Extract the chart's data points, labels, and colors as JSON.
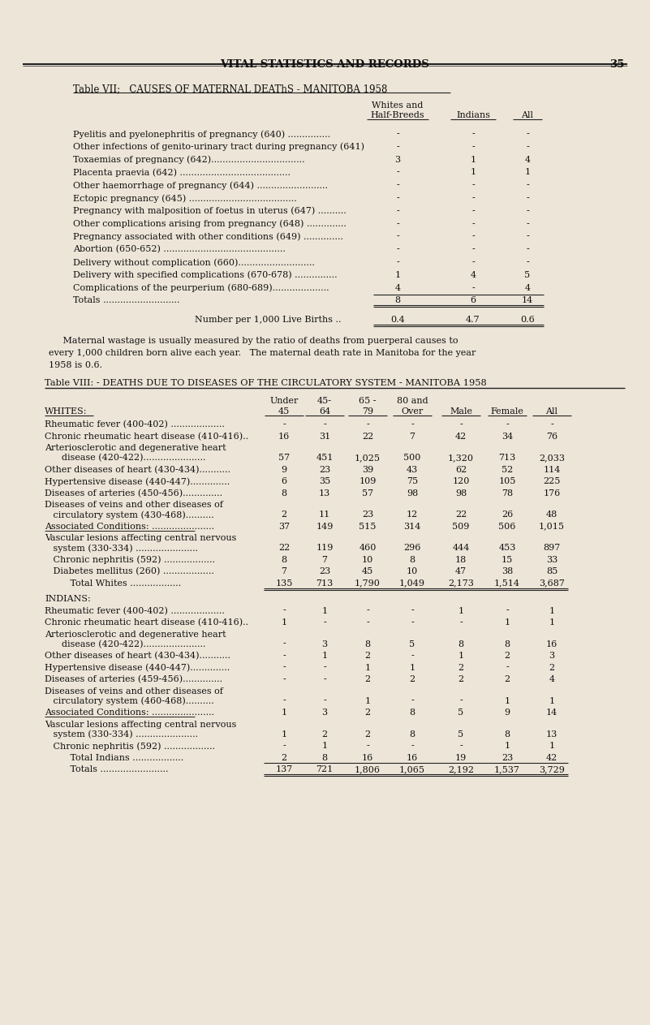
{
  "bg_color": "#ede5d8",
  "text_color": "#1a1a1a",
  "page_header": "VITAL STATISTICS AND RECORDS",
  "page_number": "35",
  "table7_title": "Table VII;   CAUSES OF MATERNAL DEAThS - MANITOBA 1958",
  "table7_col_header1": "Whites and",
  "table7_col_header2": "Half-Breeds",
  "table7_col_header3": "Indians",
  "table7_col_header4": "All",
  "table7_rows": [
    [
      "Pyelitis and pyelonephritis of pregnancy (640) ...............",
      "-",
      "-",
      "-"
    ],
    [
      "Other infections of genito-urinary tract during pregnancy (641)",
      "-",
      "-",
      "-"
    ],
    [
      "Toxaemias of pregnancy (642).................................",
      "3",
      "1",
      "4"
    ],
    [
      "Placenta praevia (642) .......................................",
      "-",
      "1",
      "1"
    ],
    [
      "Other haemorrhage of pregnancy (644) .........................",
      "-",
      "-",
      "-"
    ],
    [
      "Ectopic pregnancy (645) ......................................",
      "-",
      "-",
      "-"
    ],
    [
      "Pregnancy with malposition of foetus in uterus (647) ..........",
      "-",
      "-",
      "-"
    ],
    [
      "Other complications arising from pregnancy (648) ..............",
      "-",
      "-",
      "-"
    ],
    [
      "Pregnancy associated with other conditions (649) ..............",
      "-",
      "-",
      "-"
    ],
    [
      "Abortion (650-652) ...........................................",
      "-",
      "-",
      "-"
    ],
    [
      "Delivery without complication (660)...........................",
      "-",
      "-",
      "-"
    ],
    [
      "Delivery with specified complications (670-678) ...............",
      "1",
      "4",
      "5"
    ],
    [
      "Complications of the peurperium (680-689)....................",
      "4",
      "-",
      "4"
    ]
  ],
  "table7_totals_label": "Totals ...........................",
  "table7_totals": [
    "8",
    "6",
    "14"
  ],
  "table7_livebirth_label": "Number per 1,000 Live Births ..",
  "table7_livebirth": [
    "0.4",
    "4.7",
    "0.6"
  ],
  "para_line1": "     Maternal wastage is usually measured by the ratio of deaths from puerperal causes to",
  "para_line2": "every 1,000 children born alive each year.   The maternal death rate in Manitoba for the year",
  "para_line3": "1958 is 0.6.",
  "table8_title": "Table VIII: - DEATHS DUE TO DISEASES OF THE CIRCULATORY SYSTEM - MANITOBA 1958",
  "table8_whites_label": "WHITES:",
  "table8_whites_rows": [
    [
      "Rheumatic fever (400-402) ...................",
      "-",
      "-",
      "-",
      "-",
      "-",
      "-",
      "-"
    ],
    [
      "Chronic rheumatic heart disease (410-416)..",
      "16",
      "31",
      "22",
      "7",
      "42",
      "34",
      "76"
    ],
    [
      "Arteriosclerotic and degenerative heart",
      "",
      "",
      "",
      "",
      "",
      "",
      ""
    ],
    [
      "      disease (420-422)......................",
      "57",
      "451",
      "1,025",
      "500",
      "1,320",
      "713",
      "2,033"
    ],
    [
      "Other diseases of heart (430-434)...........",
      "9",
      "23",
      "39",
      "43",
      "62",
      "52",
      "114"
    ],
    [
      "Hypertensive disease (440-447)..............",
      "6",
      "35",
      "109",
      "75",
      "120",
      "105",
      "225"
    ],
    [
      "Diseases of arteries (450-456)..............",
      "8",
      "13",
      "57",
      "98",
      "98",
      "78",
      "176"
    ],
    [
      "Diseases of veins and other diseases of",
      "",
      "",
      "",
      "",
      "",
      "",
      ""
    ],
    [
      "   circulatory system (430-468)..........",
      "2",
      "11",
      "23",
      "12",
      "22",
      "26",
      "48"
    ],
    [
      "Associated Conditions: ......................",
      "37",
      "149",
      "515",
      "314",
      "509",
      "506",
      "1,015"
    ],
    [
      "Vascular lesions affecting central nervous",
      "",
      "",
      "",
      "",
      "",
      "",
      ""
    ],
    [
      "   system (330-334) ......................",
      "22",
      "119",
      "460",
      "296",
      "444",
      "453",
      "897"
    ],
    [
      "   Chronic nephritis (592) ..................",
      "8",
      "7",
      "10",
      "8",
      "18",
      "15",
      "33"
    ],
    [
      "   Diabetes mellitus (260) ..................",
      "7",
      "23",
      "45",
      "10",
      "47",
      "38",
      "85"
    ],
    [
      "         Total Whites ..................",
      "135",
      "713",
      "1,790",
      "1,049",
      "2,173",
      "1,514",
      "3,687"
    ]
  ],
  "table8_indians_label": "INDIANS:",
  "table8_indians_rows": [
    [
      "Rheumatic fever (400-402) ...................",
      "-",
      "1",
      "-",
      "-",
      "1",
      "-",
      "1"
    ],
    [
      "Chronic rheumatic heart disease (410-416)..",
      "1",
      "-",
      "-",
      "-",
      "-",
      "1",
      "1"
    ],
    [
      "Arteriosclerotic and degenerative heart",
      "",
      "",
      "",
      "",
      "",
      "",
      ""
    ],
    [
      "      disease (420-422)......................",
      "-",
      "3",
      "8",
      "5",
      "8",
      "8",
      "16"
    ],
    [
      "Other diseases of heart (430-434)...........",
      "-",
      "1",
      "2",
      "-",
      "1",
      "2",
      "3"
    ],
    [
      "Hypertensive disease (440-447)..............",
      "-",
      "-",
      "1",
      "1",
      "2",
      "-",
      "2"
    ],
    [
      "Diseases of arteries (459-456)..............",
      "-",
      "-",
      "2",
      "2",
      "2",
      "2",
      "4"
    ],
    [
      "Diseases of veins and other diseases of",
      "",
      "",
      "",
      "",
      "",
      "",
      ""
    ],
    [
      "   circulatory system (460-468)..........",
      "-",
      "-",
      "1",
      "-",
      "-",
      "1",
      "1"
    ],
    [
      "Associated Conditions: ......................",
      "1",
      "3",
      "2",
      "8",
      "5",
      "9",
      "14"
    ],
    [
      "Vascular lesions affecting central nervous",
      "",
      "",
      "",
      "",
      "",
      "",
      ""
    ],
    [
      "   system (330-334) ......................",
      "1",
      "2",
      "2",
      "8",
      "5",
      "8",
      "13"
    ],
    [
      "   Chronic nephritis (592) ..................",
      "-",
      "1",
      "-",
      "-",
      "-",
      "1",
      "1"
    ],
    [
      "         Total Indians ..................",
      "2",
      "8",
      "16",
      "16",
      "19",
      "23",
      "42"
    ],
    [
      "         Totals ........................",
      "137",
      "721",
      "1,806",
      "1,065",
      "2,192",
      "1,537",
      "3,729"
    ]
  ],
  "assoc_underline_whites": true,
  "assoc_underline_indians": true
}
